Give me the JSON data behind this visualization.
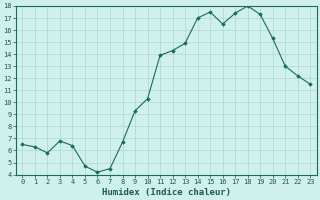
{
  "x": [
    0,
    1,
    2,
    3,
    4,
    5,
    6,
    7,
    8,
    9,
    10,
    11,
    12,
    13,
    14,
    15,
    16,
    17,
    18,
    19,
    20,
    21,
    22,
    23
  ],
  "y": [
    6.5,
    6.3,
    5.8,
    6.8,
    6.4,
    4.7,
    4.2,
    4.5,
    6.7,
    9.3,
    10.3,
    13.9,
    14.3,
    14.9,
    17.0,
    17.5,
    16.5,
    17.4,
    18.0,
    17.3,
    15.3,
    13.0,
    12.2,
    11.5
  ],
  "line_color": "#1a6b5a",
  "marker": "D",
  "marker_size": 1.8,
  "bg_color": "#cff0ec",
  "grid_color": "#aad8d3",
  "xlabel": "Humidex (Indice chaleur)",
  "ylim": [
    4,
    18
  ],
  "xlim": [
    -0.5,
    23.5
  ],
  "yticks": [
    4,
    5,
    6,
    7,
    8,
    9,
    10,
    11,
    12,
    13,
    14,
    15,
    16,
    17,
    18
  ],
  "xticks": [
    0,
    1,
    2,
    3,
    4,
    5,
    6,
    7,
    8,
    9,
    10,
    11,
    12,
    13,
    14,
    15,
    16,
    17,
    18,
    19,
    20,
    21,
    22,
    23
  ],
  "tick_label_fontsize": 5.0,
  "xlabel_fontsize": 6.5,
  "label_color": "#1a5a50",
  "spine_color": "#1a6b5a",
  "linewidth": 0.8
}
